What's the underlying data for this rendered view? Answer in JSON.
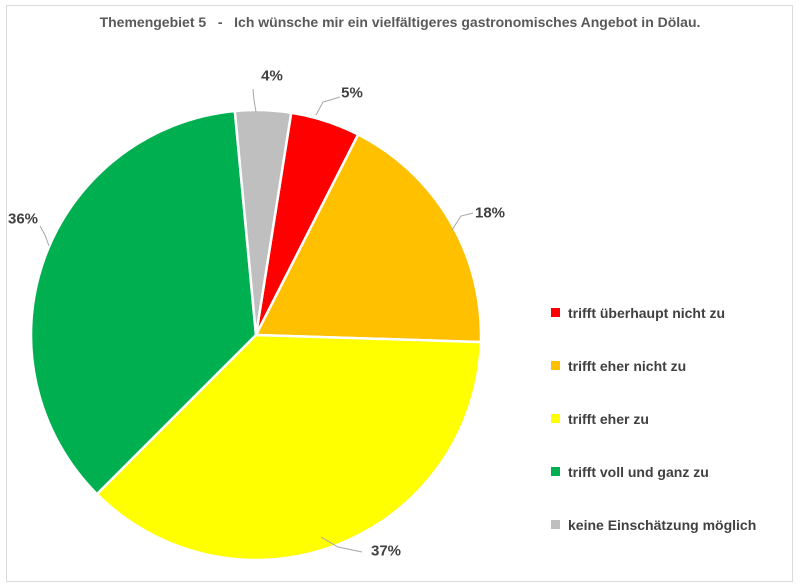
{
  "chart_data": {
    "type": "pie",
    "title": "Themengebiet 5   -   Ich wünsche mir ein vielfältigeres gastronomisches Angebot in Dölau.",
    "legend_position": "right",
    "start_angle_deg": 9,
    "slices": [
      {
        "label": "trifft überhaupt nicht zu",
        "value": 5,
        "display": "5%",
        "color": "#FF0000"
      },
      {
        "label": "trifft eher nicht zu",
        "value": 18,
        "display": "18%",
        "color": "#FFC000"
      },
      {
        "label": "trifft eher zu",
        "value": 37,
        "display": "37%",
        "color": "#FFFF00"
      },
      {
        "label": "trifft voll und ganz zu",
        "value": 36,
        "display": "36%",
        "color": "#00B050"
      },
      {
        "label": "keine Einschätzung möglich",
        "value": 4,
        "display": "4%",
        "color": "#BFBFBF"
      }
    ],
    "title_color": "#595959",
    "label_color": "#404040",
    "leader_line_color": "#A6A6A6",
    "border_color": "#D9D9D9"
  }
}
